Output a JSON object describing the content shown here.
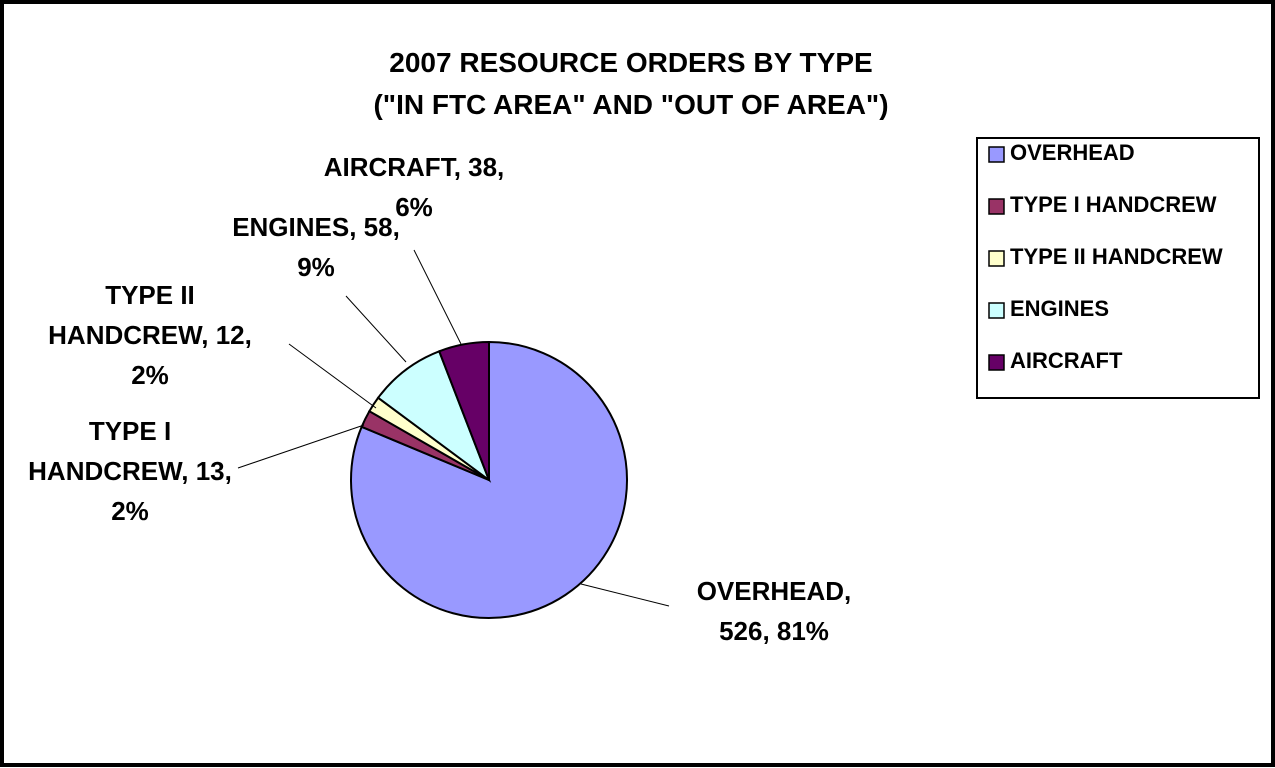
{
  "chart_data": {
    "type": "pie",
    "title": [
      "2007 RESOURCE ORDERS BY TYPE",
      "(\"IN FTC AREA\" AND \"OUT OF AREA\")"
    ],
    "slices": [
      {
        "name": "OVERHEAD",
        "value": 526,
        "percent": "81%",
        "color": "#9999ff",
        "label_lines": [
          "OVERHEAD,",
          "526, 81%"
        ]
      },
      {
        "name": "TYPE I HANDCREW",
        "value": 13,
        "percent": "2%",
        "color": "#993366",
        "label_lines": [
          "TYPE I",
          "HANDCREW, 13,",
          "2%"
        ]
      },
      {
        "name": "TYPE II HANDCREW",
        "value": 12,
        "percent": "2%",
        "color": "#ffffcc",
        "label_lines": [
          "TYPE II",
          "HANDCREW, 12,",
          "2%"
        ]
      },
      {
        "name": "ENGINES",
        "value": 58,
        "percent": "9%",
        "color": "#ccffff",
        "label_lines": [
          "ENGINES, 58,",
          "9%"
        ]
      },
      {
        "name": "AIRCRAFT",
        "value": 38,
        "percent": "6%",
        "color": "#660066",
        "label_lines": [
          "AIRCRAFT, 38,",
          "6%"
        ]
      }
    ],
    "legend_position": "right"
  }
}
